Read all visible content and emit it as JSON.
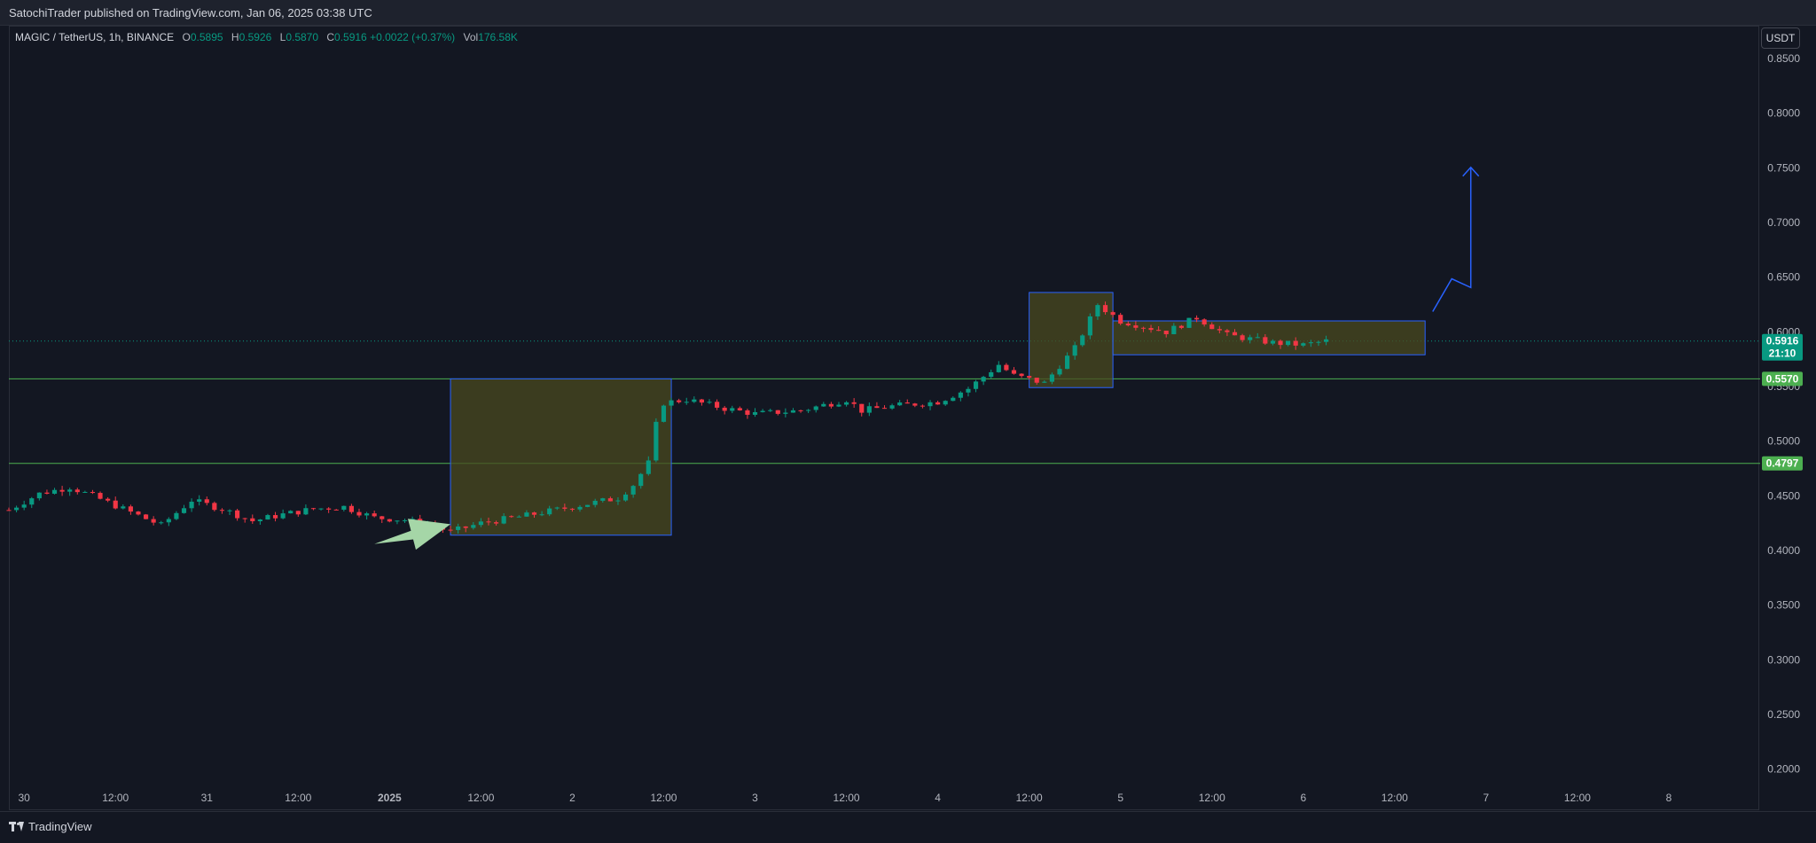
{
  "header": {
    "published": "SatochiTrader published on TradingView.com, Jan 06, 2025 03:38 UTC"
  },
  "legend": {
    "symbol": "MAGIC / TetherUS, 1h, BINANCE",
    "open_label": "O",
    "open": "0.5895",
    "high_label": "H",
    "high": "0.5926",
    "low_label": "L",
    "low": "0.5870",
    "close_label": "C",
    "close": "0.5916",
    "change": "+0.0022 (+0.37%)",
    "vol_label": "Vol",
    "volume": "176.58K"
  },
  "currency_button": "USDT",
  "footer": {
    "brand": "TradingView"
  },
  "colors": {
    "background": "#131722",
    "up": "#089981",
    "down": "#f23645",
    "level_line": "#4caf50",
    "box_fill": "#4a4a1f",
    "box_border": "#2962ff",
    "arrow_green": "#a5d6a7",
    "projection_blue": "#2962ff"
  },
  "chart_data": {
    "type": "candlestick",
    "symbol": "MAGIC / TetherUS",
    "interval": "1h",
    "exchange": "BINANCE",
    "ylim": [
      0.19,
      0.88
    ],
    "y_ticks": [
      "0.2000",
      "0.2500",
      "0.3000",
      "0.3500",
      "0.4000",
      "0.4500",
      "0.5000",
      "0.5500",
      "0.6000",
      "0.6500",
      "0.7000",
      "0.7500",
      "0.8000",
      "0.8500"
    ],
    "x_range": [
      "2024-12-29T22:00",
      "2025-01-08T12:00"
    ],
    "x_ticks": [
      {
        "label": "30",
        "t": "2024-12-30T00:00"
      },
      {
        "label": "12:00",
        "t": "2024-12-30T12:00"
      },
      {
        "label": "31",
        "t": "2024-12-31T00:00"
      },
      {
        "label": "12:00",
        "t": "2024-12-31T12:00"
      },
      {
        "label": "2025",
        "t": "2025-01-01T00:00"
      },
      {
        "label": "12:00",
        "t": "2025-01-01T12:00"
      },
      {
        "label": "2",
        "t": "2025-01-02T00:00"
      },
      {
        "label": "12:00",
        "t": "2025-01-02T12:00"
      },
      {
        "label": "3",
        "t": "2025-01-03T00:00"
      },
      {
        "label": "12:00",
        "t": "2025-01-03T12:00"
      },
      {
        "label": "4",
        "t": "2025-01-04T00:00"
      },
      {
        "label": "12:00",
        "t": "2025-01-04T12:00"
      },
      {
        "label": "5",
        "t": "2025-01-05T00:00"
      },
      {
        "label": "12:00",
        "t": "2025-01-05T12:00"
      },
      {
        "label": "6",
        "t": "2025-01-06T00:00"
      },
      {
        "label": "12:00",
        "t": "2025-01-06T12:00"
      },
      {
        "label": "7",
        "t": "2025-01-07T00:00"
      },
      {
        "label": "12:00",
        "t": "2025-01-07T12:00"
      },
      {
        "label": "8",
        "t": "2025-01-08T00:00"
      }
    ],
    "close_path": [
      [
        "2024-12-29T22:00",
        0.437
      ],
      [
        "2024-12-30T02:00",
        0.452
      ],
      [
        "2024-12-30T06:00",
        0.458
      ],
      [
        "2024-12-30T10:00",
        0.447
      ],
      [
        "2024-12-30T14:00",
        0.435
      ],
      [
        "2024-12-30T18:00",
        0.423
      ],
      [
        "2024-12-30T22:00",
        0.446
      ],
      [
        "2024-12-31T02:00",
        0.438
      ],
      [
        "2024-12-31T06:00",
        0.427
      ],
      [
        "2024-12-31T10:00",
        0.433
      ],
      [
        "2024-12-31T14:00",
        0.438
      ],
      [
        "2024-12-31T18:00",
        0.44
      ],
      [
        "2024-12-31T22:00",
        0.43
      ],
      [
        "2025-01-01T02:00",
        0.428
      ],
      [
        "2025-01-01T06:00",
        0.422
      ],
      [
        "2025-01-01T08:00",
        0.417
      ],
      [
        "2025-01-01T12:00",
        0.425
      ],
      [
        "2025-01-01T18:00",
        0.432
      ],
      [
        "2025-01-02T00:00",
        0.44
      ],
      [
        "2025-01-02T06:00",
        0.448
      ],
      [
        "2025-01-02T08:00",
        0.46
      ],
      [
        "2025-01-02T10:00",
        0.48
      ],
      [
        "2025-01-02T11:00",
        0.515
      ],
      [
        "2025-01-02T12:00",
        0.535
      ],
      [
        "2025-01-02T15:00",
        0.538
      ],
      [
        "2025-01-02T20:00",
        0.53
      ],
      [
        "2025-01-03T00:00",
        0.525
      ],
      [
        "2025-01-03T06:00",
        0.528
      ],
      [
        "2025-01-03T12:00",
        0.538
      ],
      [
        "2025-01-03T14:00",
        0.528
      ],
      [
        "2025-01-03T18:00",
        0.532
      ],
      [
        "2025-01-04T00:00",
        0.536
      ],
      [
        "2025-01-04T04:00",
        0.548
      ],
      [
        "2025-01-04T08:00",
        0.57
      ],
      [
        "2025-01-04T10:00",
        0.56
      ],
      [
        "2025-01-04T14:00",
        0.553
      ],
      [
        "2025-01-04T18:00",
        0.585
      ],
      [
        "2025-01-04T21:00",
        0.625
      ],
      [
        "2025-01-05T00:00",
        0.61
      ],
      [
        "2025-01-05T06:00",
        0.6
      ],
      [
        "2025-01-05T10:00",
        0.613
      ],
      [
        "2025-01-05T14:00",
        0.597
      ],
      [
        "2025-01-05T20:00",
        0.59
      ],
      [
        "2025-01-06T00:00",
        0.588
      ],
      [
        "2025-01-06T03:00",
        0.5916
      ]
    ],
    "price_lines": [
      {
        "value": 0.557,
        "label": "0.5570"
      },
      {
        "value": 0.4797,
        "label": "0.4797"
      }
    ],
    "last_price": {
      "value": 0.5916,
      "label": "0.5916",
      "countdown": "21:10"
    },
    "boxes": [
      {
        "t1": "2025-01-01T08:00",
        "t2": "2025-01-02T13:00",
        "y1": 0.414,
        "y2": 0.557
      },
      {
        "t1": "2025-01-04T12:00",
        "t2": "2025-01-04T23:00",
        "y1": 0.549,
        "y2": 0.636
      },
      {
        "t1": "2025-01-04T23:00",
        "t2": "2025-01-06T16:00",
        "y1": 0.579,
        "y2": 0.61
      }
    ],
    "projection_path": [
      [
        "2025-01-06T17:00",
        0.6185
      ],
      [
        "2025-01-06T19:30",
        0.6485
      ],
      [
        "2025-01-06T22:00",
        0.6405
      ],
      [
        "2025-01-06T22:00",
        0.7505
      ]
    ],
    "pointer_arrow": {
      "from": [
        "2024-12-31T22:00",
        0.406
      ],
      "to": [
        "2025-01-01T08:00",
        0.424
      ]
    }
  }
}
